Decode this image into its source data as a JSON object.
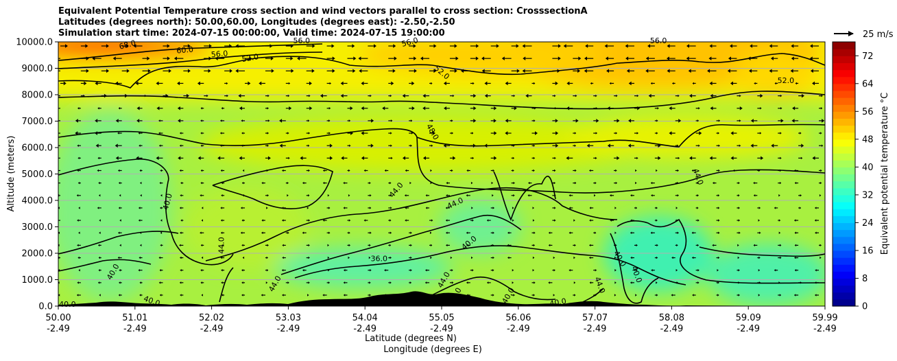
{
  "title_lines": [
    "Equivalent Potential Temperature cross section and wind vectors parallel to cross section: CrosssectionA",
    "Latitudes (degrees north): 50.00,60.00, Longitudes (degrees east): -2.50,-2.50",
    "Simulation start time: 2024-07-15 00:00:00, Valid time: 2024-07-15 19:00:00"
  ],
  "chart_data": {
    "type": "heatmap",
    "title": "Equivalent Potential Temperature cross section and wind vectors parallel to cross section: CrosssectionA",
    "xlabel": "Latitude (degrees N)",
    "xlabel2": "Longitude (degrees E)",
    "ylabel": "Altitude (meters)",
    "x_ticks": [
      {
        "lat": "50.00",
        "lon": "-2.49"
      },
      {
        "lat": "51.01",
        "lon": "-2.49"
      },
      {
        "lat": "52.02",
        "lon": "-2.49"
      },
      {
        "lat": "53.03",
        "lon": "-2.49"
      },
      {
        "lat": "54.04",
        "lon": "-2.49"
      },
      {
        "lat": "55.05",
        "lon": "-2.49"
      },
      {
        "lat": "56.06",
        "lon": "-2.49"
      },
      {
        "lat": "57.07",
        "lon": "-2.49"
      },
      {
        "lat": "58.08",
        "lon": "-2.49"
      },
      {
        "lat": "59.09",
        "lon": "-2.49"
      },
      {
        "lat": "59.99",
        "lon": "-2.49"
      }
    ],
    "xlim": [
      50.0,
      59.99
    ],
    "y_ticks": [
      "0.0",
      "1000.0",
      "2000.0",
      "3000.0",
      "4000.0",
      "5000.0",
      "6000.0",
      "7000.0",
      "8000.0",
      "9000.0",
      "10000.0"
    ],
    "ylim": [
      0,
      10000
    ],
    "grid": "horizontal",
    "colorbar": {
      "label": "Equivalent potential temperature $^\\circ$C",
      "label_display": "Equivalent potential temperature °C",
      "min": 0,
      "max": 76,
      "ticks": [
        "0",
        "8",
        "16",
        "24",
        "32",
        "40",
        "48",
        "56",
        "64",
        "72"
      ]
    },
    "quiver_key": "25 m/s",
    "contour_labels": [
      {
        "text": "68.0",
        "lat": 50.9,
        "alt": 9900,
        "rot": -15
      },
      {
        "text": "60.0",
        "lat": 51.65,
        "alt": 9700,
        "rot": -5
      },
      {
        "text": "56.0",
        "lat": 52.1,
        "alt": 9550,
        "rot": -5
      },
      {
        "text": "52.0",
        "lat": 52.5,
        "alt": 9400,
        "rot": -10
      },
      {
        "text": "56.0",
        "lat": 53.17,
        "alt": 10050,
        "rot": 0
      },
      {
        "text": "56.0",
        "lat": 54.58,
        "alt": 10000,
        "rot": -15
      },
      {
        "text": "52.0",
        "lat": 55.0,
        "alt": 8850,
        "rot": 40
      },
      {
        "text": "48.0",
        "lat": 54.88,
        "alt": 6600,
        "rot": 60
      },
      {
        "text": "56.0",
        "lat": 57.82,
        "alt": 10050,
        "rot": 0
      },
      {
        "text": "52.0",
        "lat": 59.48,
        "alt": 8550,
        "rot": 0
      },
      {
        "text": "44.0",
        "lat": 58.34,
        "alt": 4900,
        "rot": 70
      },
      {
        "text": "40.0",
        "lat": 51.42,
        "alt": 3950,
        "rot": -75
      },
      {
        "text": "44.0",
        "lat": 52.12,
        "alt": 2300,
        "rot": -90
      },
      {
        "text": "44.0",
        "lat": 54.4,
        "alt": 4400,
        "rot": -50
      },
      {
        "text": "44.0",
        "lat": 55.17,
        "alt": 3900,
        "rot": -25
      },
      {
        "text": "40.0",
        "lat": 55.35,
        "alt": 2400,
        "rot": -40
      },
      {
        "text": "36.0",
        "lat": 54.18,
        "alt": 1800,
        "rot": 0
      },
      {
        "text": "40.0",
        "lat": 50.71,
        "alt": 1300,
        "rot": -60
      },
      {
        "text": "44.0",
        "lat": 52.82,
        "alt": 850,
        "rot": -60
      },
      {
        "text": "44.0",
        "lat": 55.02,
        "alt": 1000,
        "rot": -60
      },
      {
        "text": "40.0",
        "lat": 57.32,
        "alt": 1800,
        "rot": 60
      },
      {
        "text": "40.0",
        "lat": 57.54,
        "alt": 1200,
        "rot": 70
      },
      {
        "text": "44.0",
        "lat": 57.06,
        "alt": 800,
        "rot": 70
      },
      {
        "text": "40.0",
        "lat": 50.12,
        "alt": 80,
        "rot": 0
      },
      {
        "text": "40.0",
        "lat": 51.22,
        "alt": 200,
        "rot": 20
      },
      {
        "text": "40.0",
        "lat": 55.17,
        "alt": 400,
        "rot": -60
      },
      {
        "text": "40.0",
        "lat": 55.86,
        "alt": 400,
        "rot": -60
      },
      {
        "text": "40.0",
        "lat": 56.51,
        "alt": 150,
        "rot": -10
      }
    ]
  },
  "colors": {
    "terrain": "#000000",
    "contour": "#000000",
    "grid": "#b0b0b0"
  }
}
